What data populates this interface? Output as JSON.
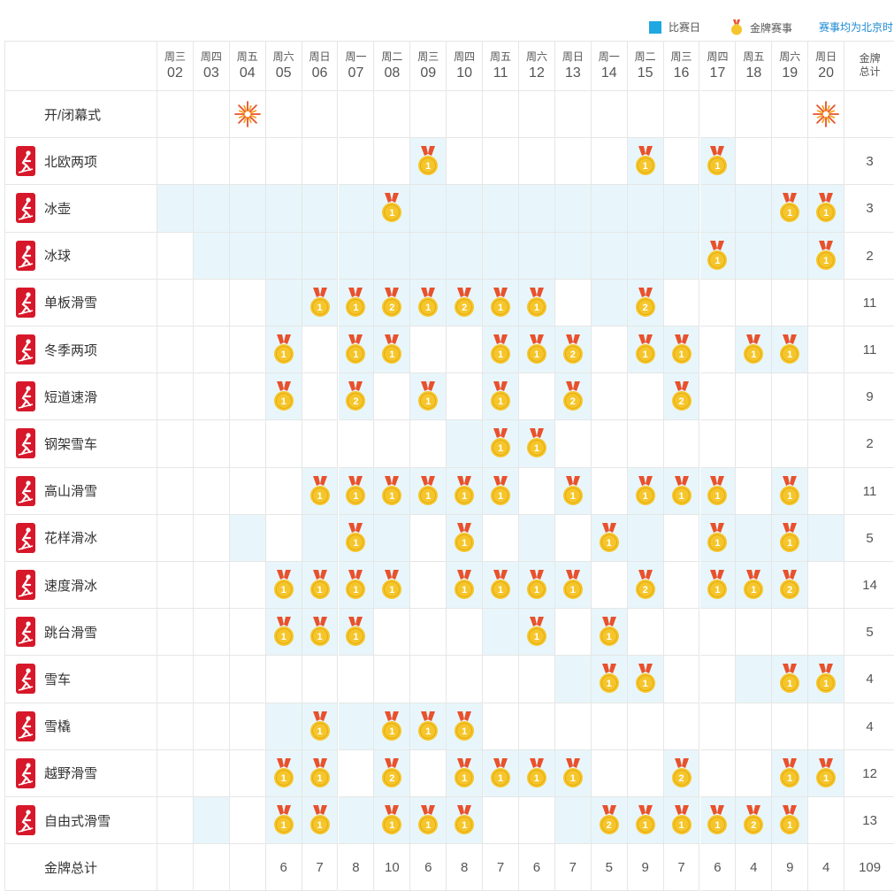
{
  "legend": {
    "competition_day": "比赛日",
    "gold_event": "金牌赛事",
    "timezone_note": "赛事均为北京时间",
    "colors": {
      "competition_day_swatch": "#1ea7e1",
      "highlight_cell": "#e8f6fb",
      "medal_gold": "#f5c62b",
      "ribbon": "#e8512d",
      "sport_icon_bg": "#d7182a"
    }
  },
  "header": {
    "days": [
      {
        "weekday": "周三",
        "date": "02"
      },
      {
        "weekday": "周四",
        "date": "03"
      },
      {
        "weekday": "周五",
        "date": "04"
      },
      {
        "weekday": "周六",
        "date": "05"
      },
      {
        "weekday": "周日",
        "date": "06"
      },
      {
        "weekday": "周一",
        "date": "07"
      },
      {
        "weekday": "周二",
        "date": "08"
      },
      {
        "weekday": "周三",
        "date": "09"
      },
      {
        "weekday": "周四",
        "date": "10"
      },
      {
        "weekday": "周五",
        "date": "11"
      },
      {
        "weekday": "周六",
        "date": "12"
      },
      {
        "weekday": "周日",
        "date": "13"
      },
      {
        "weekday": "周一",
        "date": "14"
      },
      {
        "weekday": "周二",
        "date": "15"
      },
      {
        "weekday": "周三",
        "date": "16"
      },
      {
        "weekday": "周四",
        "date": "17"
      },
      {
        "weekday": "周五",
        "date": "18"
      },
      {
        "weekday": "周六",
        "date": "19"
      },
      {
        "weekday": "周日",
        "date": "20"
      }
    ],
    "total_line1": "金牌",
    "total_line2": "总计"
  },
  "ceremony": {
    "label": "开/闭幕式",
    "icon": "firework-icon",
    "days": [
      "04",
      "20"
    ]
  },
  "sports": [
    {
      "name": "北欧两项",
      "icon": "nordic-combined-icon",
      "total": "3",
      "cells": [
        [
          0,
          0
        ],
        [
          0,
          0
        ],
        [
          0,
          0
        ],
        [
          0,
          0
        ],
        [
          0,
          0
        ],
        [
          0,
          0
        ],
        [
          0,
          0
        ],
        [
          1,
          1
        ],
        [
          0,
          0
        ],
        [
          0,
          0
        ],
        [
          0,
          0
        ],
        [
          0,
          0
        ],
        [
          0,
          0
        ],
        [
          1,
          1
        ],
        [
          0,
          0
        ],
        [
          1,
          1
        ],
        [
          0,
          0
        ],
        [
          0,
          0
        ],
        [
          0,
          0
        ]
      ]
    },
    {
      "name": "冰壶",
      "icon": "curling-icon",
      "total": "3",
      "cells": [
        [
          1,
          0
        ],
        [
          1,
          0
        ],
        [
          1,
          0
        ],
        [
          1,
          0
        ],
        [
          1,
          0
        ],
        [
          1,
          0
        ],
        [
          1,
          1
        ],
        [
          1,
          0
        ],
        [
          1,
          0
        ],
        [
          1,
          0
        ],
        [
          1,
          0
        ],
        [
          1,
          0
        ],
        [
          1,
          0
        ],
        [
          1,
          0
        ],
        [
          1,
          0
        ],
        [
          1,
          0
        ],
        [
          1,
          0
        ],
        [
          1,
          1
        ],
        [
          1,
          1
        ]
      ]
    },
    {
      "name": "冰球",
      "icon": "ice-hockey-icon",
      "total": "2",
      "cells": [
        [
          0,
          0
        ],
        [
          1,
          0
        ],
        [
          1,
          0
        ],
        [
          1,
          0
        ],
        [
          1,
          0
        ],
        [
          1,
          0
        ],
        [
          1,
          0
        ],
        [
          1,
          0
        ],
        [
          1,
          0
        ],
        [
          1,
          0
        ],
        [
          1,
          0
        ],
        [
          1,
          0
        ],
        [
          1,
          0
        ],
        [
          1,
          0
        ],
        [
          1,
          0
        ],
        [
          1,
          1
        ],
        [
          1,
          0
        ],
        [
          1,
          0
        ],
        [
          1,
          1
        ]
      ]
    },
    {
      "name": "单板滑雪",
      "icon": "snowboard-icon",
      "total": "11",
      "cells": [
        [
          0,
          0
        ],
        [
          0,
          0
        ],
        [
          0,
          0
        ],
        [
          1,
          0
        ],
        [
          1,
          1
        ],
        [
          1,
          1
        ],
        [
          1,
          2
        ],
        [
          1,
          1
        ],
        [
          1,
          2
        ],
        [
          1,
          1
        ],
        [
          1,
          1
        ],
        [
          0,
          0
        ],
        [
          1,
          0
        ],
        [
          1,
          2
        ],
        [
          0,
          0
        ],
        [
          0,
          0
        ],
        [
          0,
          0
        ],
        [
          0,
          0
        ],
        [
          0,
          0
        ]
      ]
    },
    {
      "name": "冬季两项",
      "icon": "biathlon-icon",
      "total": "11",
      "cells": [
        [
          0,
          0
        ],
        [
          0,
          0
        ],
        [
          0,
          0
        ],
        [
          1,
          1
        ],
        [
          0,
          0
        ],
        [
          1,
          1
        ],
        [
          1,
          1
        ],
        [
          0,
          0
        ],
        [
          0,
          0
        ],
        [
          1,
          1
        ],
        [
          1,
          1
        ],
        [
          1,
          2
        ],
        [
          0,
          0
        ],
        [
          1,
          1
        ],
        [
          1,
          1
        ],
        [
          0,
          0
        ],
        [
          1,
          1
        ],
        [
          1,
          1
        ],
        [
          0,
          0
        ]
      ]
    },
    {
      "name": "短道速滑",
      "icon": "short-track-icon",
      "total": "9",
      "cells": [
        [
          0,
          0
        ],
        [
          0,
          0
        ],
        [
          0,
          0
        ],
        [
          1,
          1
        ],
        [
          0,
          0
        ],
        [
          1,
          2
        ],
        [
          0,
          0
        ],
        [
          1,
          1
        ],
        [
          0,
          0
        ],
        [
          1,
          1
        ],
        [
          0,
          0
        ],
        [
          1,
          2
        ],
        [
          0,
          0
        ],
        [
          0,
          0
        ],
        [
          1,
          2
        ],
        [
          0,
          0
        ],
        [
          0,
          0
        ],
        [
          0,
          0
        ],
        [
          0,
          0
        ]
      ]
    },
    {
      "name": "钢架雪车",
      "icon": "skeleton-icon",
      "total": "2",
      "cells": [
        [
          0,
          0
        ],
        [
          0,
          0
        ],
        [
          0,
          0
        ],
        [
          0,
          0
        ],
        [
          0,
          0
        ],
        [
          0,
          0
        ],
        [
          0,
          0
        ],
        [
          0,
          0
        ],
        [
          1,
          0
        ],
        [
          1,
          1
        ],
        [
          1,
          1
        ],
        [
          0,
          0
        ],
        [
          0,
          0
        ],
        [
          0,
          0
        ],
        [
          0,
          0
        ],
        [
          0,
          0
        ],
        [
          0,
          0
        ],
        [
          0,
          0
        ],
        [
          0,
          0
        ]
      ]
    },
    {
      "name": "高山滑雪",
      "icon": "alpine-skiing-icon",
      "total": "11",
      "cells": [
        [
          0,
          0
        ],
        [
          0,
          0
        ],
        [
          0,
          0
        ],
        [
          0,
          0
        ],
        [
          1,
          1
        ],
        [
          1,
          1
        ],
        [
          1,
          1
        ],
        [
          1,
          1
        ],
        [
          1,
          1
        ],
        [
          1,
          1
        ],
        [
          0,
          0
        ],
        [
          1,
          1
        ],
        [
          0,
          0
        ],
        [
          1,
          1
        ],
        [
          1,
          1
        ],
        [
          1,
          1
        ],
        [
          0,
          0
        ],
        [
          1,
          1
        ],
        [
          0,
          0
        ]
      ]
    },
    {
      "name": "花样滑冰",
      "icon": "figure-skating-icon",
      "total": "5",
      "cells": [
        [
          0,
          0
        ],
        [
          0,
          0
        ],
        [
          1,
          0
        ],
        [
          0,
          0
        ],
        [
          1,
          0
        ],
        [
          1,
          1
        ],
        [
          1,
          0
        ],
        [
          0,
          0
        ],
        [
          1,
          1
        ],
        [
          0,
          0
        ],
        [
          1,
          0
        ],
        [
          0,
          0
        ],
        [
          1,
          1
        ],
        [
          1,
          0
        ],
        [
          0,
          0
        ],
        [
          1,
          1
        ],
        [
          1,
          0
        ],
        [
          1,
          1
        ],
        [
          1,
          0
        ]
      ]
    },
    {
      "name": "速度滑冰",
      "icon": "speed-skating-icon",
      "total": "14",
      "cells": [
        [
          0,
          0
        ],
        [
          0,
          0
        ],
        [
          0,
          0
        ],
        [
          1,
          1
        ],
        [
          1,
          1
        ],
        [
          1,
          1
        ],
        [
          1,
          1
        ],
        [
          0,
          0
        ],
        [
          1,
          1
        ],
        [
          1,
          1
        ],
        [
          1,
          1
        ],
        [
          1,
          1
        ],
        [
          0,
          0
        ],
        [
          1,
          2
        ],
        [
          0,
          0
        ],
        [
          1,
          1
        ],
        [
          1,
          1
        ],
        [
          1,
          2
        ],
        [
          0,
          0
        ]
      ]
    },
    {
      "name": "跳台滑雪",
      "icon": "ski-jumping-icon",
      "total": "5",
      "cells": [
        [
          0,
          0
        ],
        [
          0,
          0
        ],
        [
          0,
          0
        ],
        [
          1,
          1
        ],
        [
          1,
          1
        ],
        [
          1,
          1
        ],
        [
          0,
          0
        ],
        [
          0,
          0
        ],
        [
          0,
          0
        ],
        [
          1,
          0
        ],
        [
          1,
          1
        ],
        [
          0,
          0
        ],
        [
          1,
          1
        ],
        [
          0,
          0
        ],
        [
          0,
          0
        ],
        [
          0,
          0
        ],
        [
          0,
          0
        ],
        [
          0,
          0
        ],
        [
          0,
          0
        ]
      ]
    },
    {
      "name": "雪车",
      "icon": "bobsleigh-icon",
      "total": "4",
      "cells": [
        [
          0,
          0
        ],
        [
          0,
          0
        ],
        [
          0,
          0
        ],
        [
          0,
          0
        ],
        [
          0,
          0
        ],
        [
          0,
          0
        ],
        [
          0,
          0
        ],
        [
          0,
          0
        ],
        [
          0,
          0
        ],
        [
          0,
          0
        ],
        [
          0,
          0
        ],
        [
          1,
          0
        ],
        [
          1,
          1
        ],
        [
          1,
          1
        ],
        [
          0,
          0
        ],
        [
          0,
          0
        ],
        [
          1,
          0
        ],
        [
          1,
          1
        ],
        [
          1,
          1
        ]
      ]
    },
    {
      "name": "雪橇",
      "icon": "luge-icon",
      "total": "4",
      "cells": [
        [
          0,
          0
        ],
        [
          0,
          0
        ],
        [
          0,
          0
        ],
        [
          1,
          0
        ],
        [
          1,
          1
        ],
        [
          1,
          0
        ],
        [
          1,
          1
        ],
        [
          1,
          1
        ],
        [
          1,
          1
        ],
        [
          0,
          0
        ],
        [
          0,
          0
        ],
        [
          0,
          0
        ],
        [
          0,
          0
        ],
        [
          0,
          0
        ],
        [
          0,
          0
        ],
        [
          0,
          0
        ],
        [
          0,
          0
        ],
        [
          0,
          0
        ],
        [
          0,
          0
        ]
      ]
    },
    {
      "name": "越野滑雪",
      "icon": "cross-country-icon",
      "total": "12",
      "cells": [
        [
          0,
          0
        ],
        [
          0,
          0
        ],
        [
          0,
          0
        ],
        [
          1,
          1
        ],
        [
          1,
          1
        ],
        [
          0,
          0
        ],
        [
          1,
          2
        ],
        [
          0,
          0
        ],
        [
          1,
          1
        ],
        [
          1,
          1
        ],
        [
          1,
          1
        ],
        [
          1,
          1
        ],
        [
          0,
          0
        ],
        [
          0,
          0
        ],
        [
          1,
          2
        ],
        [
          0,
          0
        ],
        [
          0,
          0
        ],
        [
          1,
          1
        ],
        [
          1,
          1
        ]
      ]
    },
    {
      "name": "自由式滑雪",
      "icon": "freestyle-skiing-icon",
      "total": "13",
      "cells": [
        [
          0,
          0
        ],
        [
          1,
          0
        ],
        [
          0,
          0
        ],
        [
          1,
          1
        ],
        [
          1,
          1
        ],
        [
          1,
          0
        ],
        [
          1,
          1
        ],
        [
          1,
          1
        ],
        [
          1,
          1
        ],
        [
          0,
          0
        ],
        [
          0,
          0
        ],
        [
          1,
          0
        ],
        [
          1,
          2
        ],
        [
          1,
          1
        ],
        [
          1,
          1
        ],
        [
          1,
          1
        ],
        [
          1,
          2
        ],
        [
          1,
          1
        ],
        [
          0,
          0
        ]
      ]
    }
  ],
  "totals": {
    "label": "金牌总计",
    "days": [
      "",
      "",
      "",
      "6",
      "7",
      "8",
      "10",
      "6",
      "8",
      "7",
      "6",
      "7",
      "5",
      "9",
      "7",
      "6",
      "4",
      "9",
      "4"
    ],
    "grand_total": "109"
  }
}
